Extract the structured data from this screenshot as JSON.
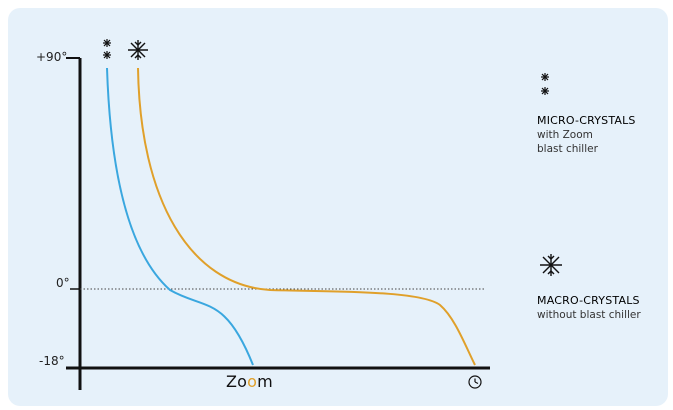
{
  "diagram": {
    "y_axis": {
      "top_label": "+90°",
      "zero_label": "0°",
      "bottom_label": "-18°"
    },
    "brand_label": {
      "prefix": "Zo",
      "highlight": "o",
      "suffix": "m"
    },
    "clock_icon": "clock-icon",
    "curves": [
      {
        "name": "micro",
        "color": "#3aa7df",
        "icon": "small-snowflake-pair-icon"
      },
      {
        "name": "macro",
        "color": "#e0a02a",
        "icon": "large-snowflake-icon"
      }
    ],
    "legend": {
      "micro": {
        "title": "MICRO-CRYSTALS",
        "line1": "with Zoom",
        "line2": "blast chiller"
      },
      "macro": {
        "title": "MACRO-CRYSTALS",
        "line1": "without blast chiller"
      }
    }
  }
}
